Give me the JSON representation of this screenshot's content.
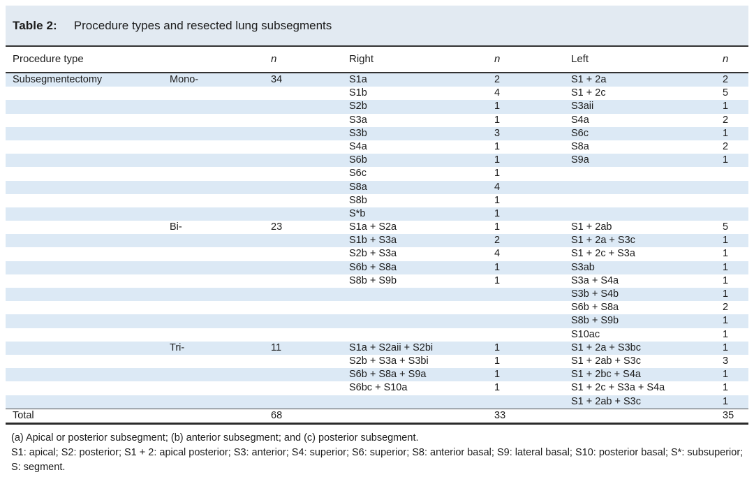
{
  "title": {
    "label": "Table 2:",
    "text": "Procedure types and resected lung subsegments"
  },
  "table": {
    "columns": [
      "Procedure type",
      "",
      "n",
      "Right",
      "n",
      "Left",
      "n"
    ],
    "rows": [
      [
        "Subsegmentectomy",
        "Mono-",
        "34",
        "S1a",
        "2",
        "S1 + 2a",
        "2"
      ],
      [
        "",
        "",
        "",
        "S1b",
        "4",
        "S1 + 2c",
        "5"
      ],
      [
        "",
        "",
        "",
        "S2b",
        "1",
        "S3aii",
        "1"
      ],
      [
        "",
        "",
        "",
        "S3a",
        "1",
        "S4a",
        "2"
      ],
      [
        "",
        "",
        "",
        "S3b",
        "3",
        "S6c",
        "1"
      ],
      [
        "",
        "",
        "",
        "S4a",
        "1",
        "S8a",
        "2"
      ],
      [
        "",
        "",
        "",
        "S6b",
        "1",
        "S9a",
        "1"
      ],
      [
        "",
        "",
        "",
        "S6c",
        "1",
        "",
        ""
      ],
      [
        "",
        "",
        "",
        "S8a",
        "4",
        "",
        ""
      ],
      [
        "",
        "",
        "",
        "S8b",
        "1",
        "",
        ""
      ],
      [
        "",
        "",
        "",
        "S*b",
        "1",
        "",
        ""
      ],
      [
        "",
        "Bi-",
        "23",
        "S1a + S2a",
        "1",
        "S1 + 2ab",
        "5"
      ],
      [
        "",
        "",
        "",
        "S1b + S3a",
        "2",
        "S1 + 2a + S3c",
        "1"
      ],
      [
        "",
        "",
        "",
        "S2b + S3a",
        "4",
        "S1 + 2c + S3a",
        "1"
      ],
      [
        "",
        "",
        "",
        "S6b + S8a",
        "1",
        "S3ab",
        "1"
      ],
      [
        "",
        "",
        "",
        "S8b + S9b",
        "1",
        "S3a + S4a",
        "1"
      ],
      [
        "",
        "",
        "",
        "",
        "",
        "S3b + S4b",
        "1"
      ],
      [
        "",
        "",
        "",
        "",
        "",
        "S6b + S8a",
        "2"
      ],
      [
        "",
        "",
        "",
        "",
        "",
        "S8b + S9b",
        "1"
      ],
      [
        "",
        "",
        "",
        "",
        "",
        "S10ac",
        "1"
      ],
      [
        "",
        "Tri-",
        "11",
        "S1a + S2aii + S2bi",
        "1",
        "S1 + 2a + S3bc",
        "1"
      ],
      [
        "",
        "",
        "",
        "S2b + S3a + S3bi",
        "1",
        "S1 + 2ab + S3c",
        "3"
      ],
      [
        "",
        "",
        "",
        "S6b + S8a + S9a",
        "1",
        "S1 + 2bc + S4a",
        "1"
      ],
      [
        "",
        "",
        "",
        "S6bc + S10a",
        "1",
        "S1 + 2c + S3a + S4a",
        "1"
      ],
      [
        "",
        "",
        "",
        "",
        "",
        "S1 + 2ab + S3c",
        "1"
      ]
    ],
    "total": [
      "Total",
      "",
      "68",
      "",
      "33",
      "",
      "35"
    ]
  },
  "footnotes": [
    "(a) Apical or posterior subsegment; (b) anterior subsegment; and (c) posterior subsegment.",
    "S1: apical; S2: posterior; S1 + 2: apical posterior; S3: anterior; S4: superior; S6: superior; S8: anterior basal; S9: lateral basal; S10: posterior basal; S*: subsuperior; S: segment."
  ],
  "colors": {
    "title_band": "#e2eaf2",
    "row_stripe": "#dce9f5",
    "rule": "#323232"
  }
}
